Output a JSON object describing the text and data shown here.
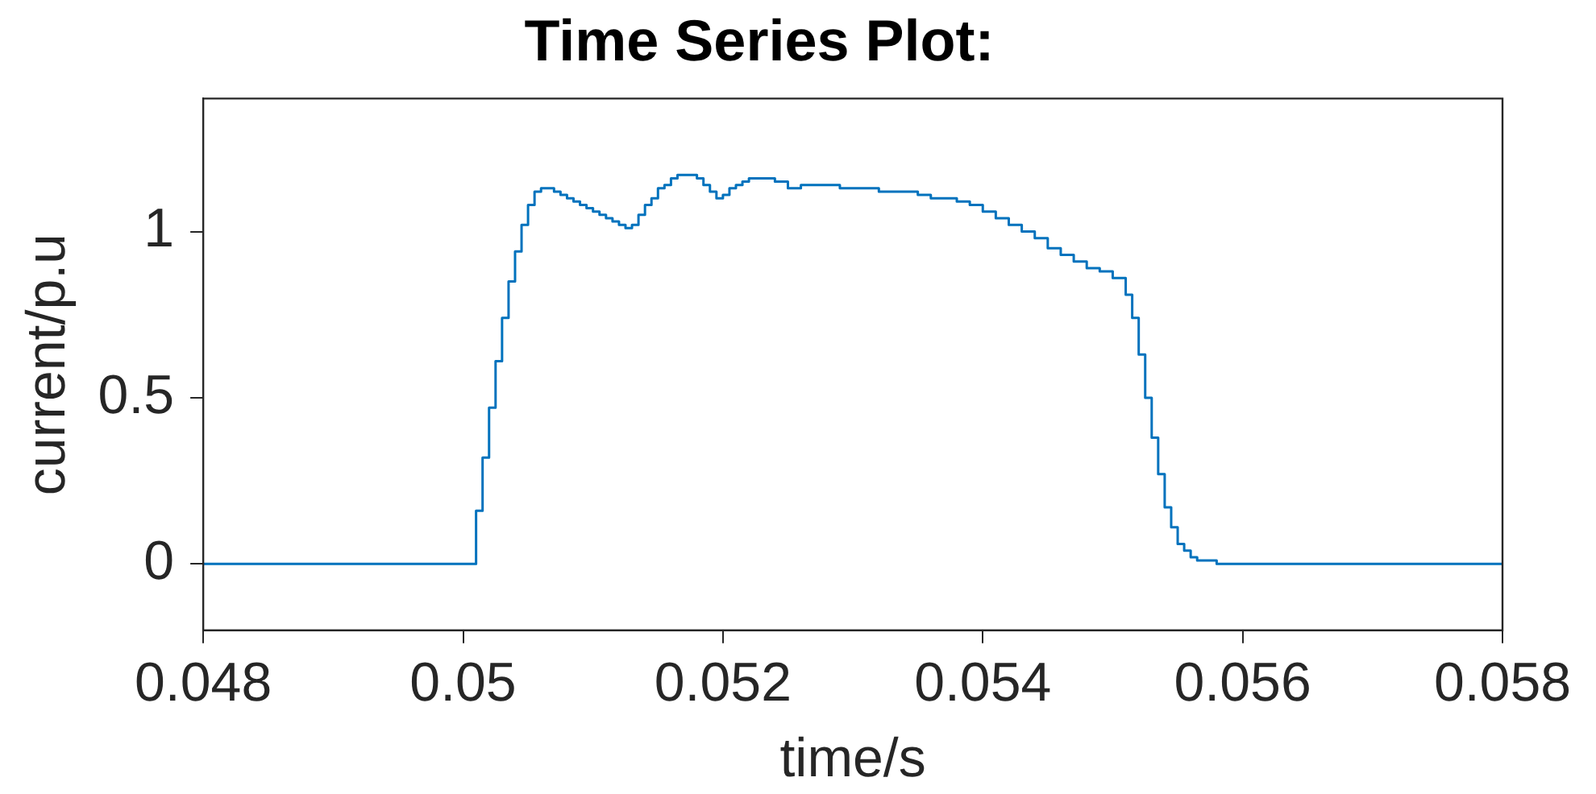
{
  "chart_data": {
    "type": "step",
    "title": "Time Series Plot:",
    "xlabel": "time/s",
    "ylabel": "current/p.u",
    "xlim": [
      0.048,
      0.058
    ],
    "xticks": [
      0.048,
      0.05,
      0.052,
      0.054,
      0.056,
      0.058
    ],
    "ylim": [
      -0.2,
      1.4
    ],
    "yticks": [
      0,
      0.5,
      1
    ],
    "grid": false,
    "x": [
      0.048,
      0.05005,
      0.0501,
      0.05015,
      0.0502,
      0.05025,
      0.0503,
      0.05035,
      0.0504,
      0.05045,
      0.0505,
      0.05055,
      0.0506,
      0.05065,
      0.0507,
      0.05075,
      0.0508,
      0.05085,
      0.0509,
      0.05095,
      0.051,
      0.05105,
      0.0511,
      0.05115,
      0.0512,
      0.05125,
      0.0513,
      0.05135,
      0.0514,
      0.05145,
      0.0515,
      0.05155,
      0.0516,
      0.05165,
      0.0517,
      0.05175,
      0.0518,
      0.05185,
      0.0519,
      0.05195,
      0.052,
      0.05205,
      0.0521,
      0.05215,
      0.0522,
      0.05225,
      0.0523,
      0.0524,
      0.0525,
      0.0526,
      0.0527,
      0.0528,
      0.0529,
      0.053,
      0.0531,
      0.0532,
      0.0533,
      0.0534,
      0.0535,
      0.0536,
      0.0537,
      0.0538,
      0.0539,
      0.054,
      0.0541,
      0.0542,
      0.0543,
      0.0544,
      0.0545,
      0.0546,
      0.0547,
      0.0548,
      0.0549,
      0.055,
      0.0551,
      0.05515,
      0.0552,
      0.05525,
      0.0553,
      0.05535,
      0.0554,
      0.05545,
      0.0555,
      0.05555,
      0.0556,
      0.05565,
      0.0557,
      0.0558,
      0.057,
      0.058
    ],
    "series": [
      {
        "color": "#0072bd",
        "values": [
          0,
          0,
          0.16,
          0.32,
          0.47,
          0.61,
          0.74,
          0.85,
          0.94,
          1.02,
          1.08,
          1.12,
          1.13,
          1.13,
          1.12,
          1.11,
          1.1,
          1.09,
          1.08,
          1.07,
          1.06,
          1.05,
          1.04,
          1.03,
          1.02,
          1.01,
          1.02,
          1.05,
          1.08,
          1.1,
          1.13,
          1.14,
          1.16,
          1.17,
          1.17,
          1.17,
          1.16,
          1.14,
          1.12,
          1.1,
          1.11,
          1.13,
          1.14,
          1.15,
          1.16,
          1.16,
          1.16,
          1.15,
          1.13,
          1.14,
          1.14,
          1.14,
          1.13,
          1.13,
          1.13,
          1.12,
          1.12,
          1.12,
          1.11,
          1.1,
          1.1,
          1.09,
          1.08,
          1.06,
          1.04,
          1.02,
          1,
          0.98,
          0.95,
          0.93,
          0.91,
          0.89,
          0.88,
          0.86,
          0.81,
          0.74,
          0.63,
          0.5,
          0.38,
          0.27,
          0.17,
          0.11,
          0.06,
          0.04,
          0.02,
          0.01,
          0.01,
          0,
          0,
          0
        ]
      }
    ]
  }
}
